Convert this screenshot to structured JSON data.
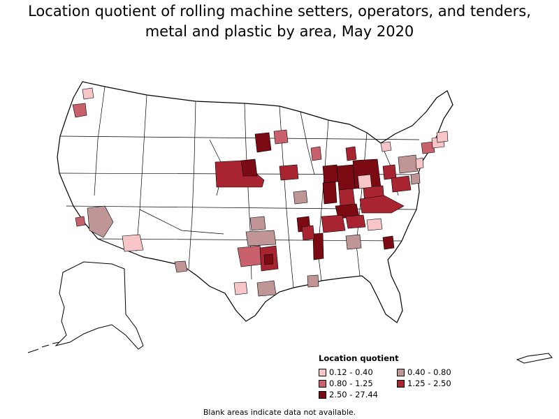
{
  "title": {
    "line1": "Location quotient of rolling machine setters, operators, and tenders,",
    "line2": "metal and plastic by area, May 2020"
  },
  "legend": {
    "title": "Location quotient",
    "items": [
      {
        "label": "0.12 - 0.40",
        "color": "#f7c4c8"
      },
      {
        "label": "0.40 - 0.80",
        "color": "#bf9596"
      },
      {
        "label": "0.80 - 1.25",
        "color": "#c9616d"
      },
      {
        "label": "1.25 - 2.50",
        "color": "#a82431"
      },
      {
        "label": "2.50 - 27.44",
        "color": "#7b0a12"
      }
    ]
  },
  "footnote": "Blank areas indicate data not available.",
  "colors": {
    "no_data": "#ffffff",
    "border": "#000000"
  }
}
